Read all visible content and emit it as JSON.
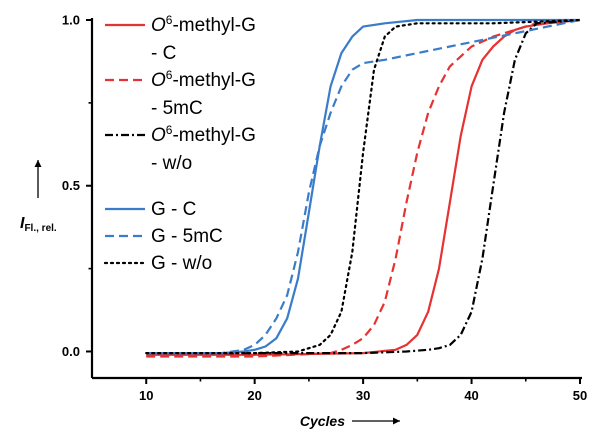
{
  "chart_data": {
    "type": "line",
    "xlabel": "Cycles",
    "ylabel_main": "I",
    "ylabel_sub": "Fl., rel.",
    "xlim": [
      5,
      50
    ],
    "ylim": [
      -0.08,
      1.0
    ],
    "x_ticks": [
      10,
      20,
      30,
      40,
      50
    ],
    "y_ticks": [
      0.0,
      0.5,
      1.0
    ],
    "y_tick_labels": [
      "0.0",
      "0.5",
      "1.0"
    ],
    "grid": false,
    "legend_position": "top-left inside",
    "series": [
      {
        "legend_lines": [
          {
            "italic_prefix": "O",
            "sup": "6",
            "text": "-methyl-G"
          },
          {
            "text": "- C"
          }
        ],
        "color": "#e63232",
        "dash": "solid",
        "points": [
          [
            10,
            -0.01
          ],
          [
            20,
            -0.01
          ],
          [
            30,
            -0.005
          ],
          [
            33,
            0.005
          ],
          [
            34,
            0.02
          ],
          [
            35,
            0.05
          ],
          [
            36,
            0.12
          ],
          [
            37,
            0.25
          ],
          [
            38,
            0.45
          ],
          [
            39,
            0.65
          ],
          [
            40,
            0.8
          ],
          [
            41,
            0.88
          ],
          [
            42,
            0.92
          ],
          [
            43,
            0.95
          ],
          [
            44,
            0.97
          ],
          [
            45,
            0.98
          ],
          [
            47,
            0.99
          ],
          [
            50,
            1.0
          ]
        ]
      },
      {
        "legend_lines": [
          {
            "italic_prefix": "O",
            "sup": "6",
            "text": "-methyl-G"
          },
          {
            "text": "- 5mC"
          }
        ],
        "color": "#e63232",
        "dash": "dashed",
        "points": [
          [
            10,
            -0.015
          ],
          [
            20,
            -0.015
          ],
          [
            27,
            -0.005
          ],
          [
            28,
            0.005
          ],
          [
            29,
            0.02
          ],
          [
            30,
            0.04
          ],
          [
            31,
            0.08
          ],
          [
            32,
            0.15
          ],
          [
            33,
            0.28
          ],
          [
            34,
            0.45
          ],
          [
            35,
            0.6
          ],
          [
            36,
            0.72
          ],
          [
            37,
            0.8
          ],
          [
            38,
            0.86
          ],
          [
            40,
            0.92
          ],
          [
            42,
            0.95
          ],
          [
            44,
            0.97
          ],
          [
            46,
            0.99
          ],
          [
            50,
            1.0
          ]
        ]
      },
      {
        "legend_lines": [
          {
            "italic_prefix": "O",
            "sup": "6",
            "text": "-methyl-G"
          },
          {
            "text": "- w/o"
          }
        ],
        "color": "#000000",
        "dash": "dashdot",
        "points": [
          [
            10,
            -0.005
          ],
          [
            30,
            -0.005
          ],
          [
            34,
            0.0
          ],
          [
            36,
            0.005
          ],
          [
            37,
            0.01
          ],
          [
            38,
            0.02
          ],
          [
            39,
            0.05
          ],
          [
            40,
            0.12
          ],
          [
            41,
            0.28
          ],
          [
            42,
            0.5
          ],
          [
            43,
            0.72
          ],
          [
            44,
            0.88
          ],
          [
            45,
            0.96
          ],
          [
            46,
            0.99
          ],
          [
            50,
            1.0
          ]
        ]
      },
      {
        "legend_lines": [
          {
            "text": "G - C"
          }
        ],
        "color": "#3a7cc9",
        "dash": "solid",
        "points": [
          [
            10,
            -0.005
          ],
          [
            17,
            -0.005
          ],
          [
            19,
            0.0
          ],
          [
            20,
            0.005
          ],
          [
            21,
            0.015
          ],
          [
            22,
            0.04
          ],
          [
            23,
            0.1
          ],
          [
            24,
            0.22
          ],
          [
            25,
            0.42
          ],
          [
            26,
            0.62
          ],
          [
            27,
            0.8
          ],
          [
            28,
            0.9
          ],
          [
            29,
            0.95
          ],
          [
            30,
            0.98
          ],
          [
            32,
            0.99
          ],
          [
            35,
            1.0
          ],
          [
            50,
            1.0
          ]
        ]
      },
      {
        "legend_lines": [
          {
            "text": "G - 5mC"
          }
        ],
        "color": "#3a7cc9",
        "dash": "dashed",
        "points": [
          [
            10,
            -0.005
          ],
          [
            17,
            -0.005
          ],
          [
            19,
            0.005
          ],
          [
            20,
            0.02
          ],
          [
            21,
            0.05
          ],
          [
            22,
            0.1
          ],
          [
            23,
            0.17
          ],
          [
            24,
            0.3
          ],
          [
            25,
            0.48
          ],
          [
            26,
            0.62
          ],
          [
            27,
            0.72
          ],
          [
            28,
            0.8
          ],
          [
            29,
            0.85
          ],
          [
            30,
            0.87
          ],
          [
            32,
            0.88
          ],
          [
            35,
            0.9
          ],
          [
            38,
            0.92
          ],
          [
            41,
            0.94
          ],
          [
            44,
            0.96
          ],
          [
            47,
            0.98
          ],
          [
            50,
            1.0
          ]
        ]
      },
      {
        "legend_lines": [
          {
            "text": "G - w/o"
          }
        ],
        "color": "#000000",
        "dash": "dotted",
        "points": [
          [
            10,
            -0.005
          ],
          [
            20,
            -0.005
          ],
          [
            24,
            0.0
          ],
          [
            25,
            0.01
          ],
          [
            26,
            0.02
          ],
          [
            27,
            0.05
          ],
          [
            28,
            0.12
          ],
          [
            29,
            0.3
          ],
          [
            30,
            0.6
          ],
          [
            31,
            0.85
          ],
          [
            32,
            0.95
          ],
          [
            33,
            0.98
          ],
          [
            35,
            0.99
          ],
          [
            38,
            0.99
          ],
          [
            42,
            0.99
          ],
          [
            46,
            0.995
          ],
          [
            50,
            1.0
          ]
        ]
      }
    ]
  }
}
